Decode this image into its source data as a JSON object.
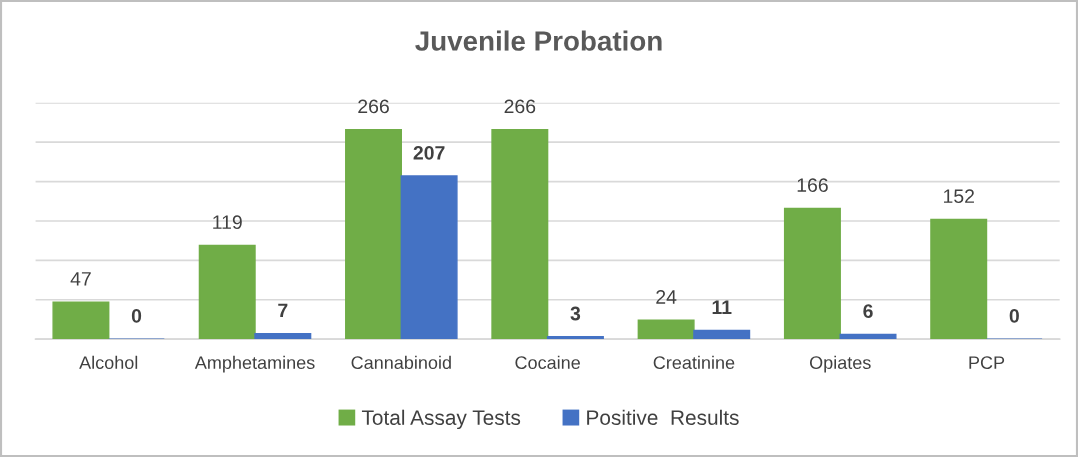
{
  "chart_data": {
    "type": "bar",
    "title": "Juvenile Probation",
    "categories": [
      "Alcohol",
      "Amphetamines",
      "Cannabinoid",
      "Cocaine",
      "Creatinine",
      "Opiates",
      "PCP"
    ],
    "series": [
      {
        "name": "Total Assay Tests",
        "color": "#70ad47",
        "values": [
          47,
          119,
          266,
          266,
          24,
          166,
          152
        ]
      },
      {
        "name": "Positive  Results",
        "color": "#4472c4",
        "values": [
          0,
          7,
          207,
          3,
          11,
          6,
          0
        ]
      }
    ],
    "ylim": [
      0,
      300
    ],
    "yticks": [
      {
        "value": 0,
        "label": null
      },
      {
        "value": 50,
        "label": null
      },
      {
        "value": 100,
        "label": null
      },
      {
        "value": 150,
        "label": null
      },
      {
        "value": 200,
        "label": null
      },
      {
        "value": 250,
        "label": null
      },
      {
        "value": 300,
        "label": null
      }
    ],
    "tick_labels": "x",
    "grid": "y",
    "legend": "bottom",
    "data_labels": true
  }
}
